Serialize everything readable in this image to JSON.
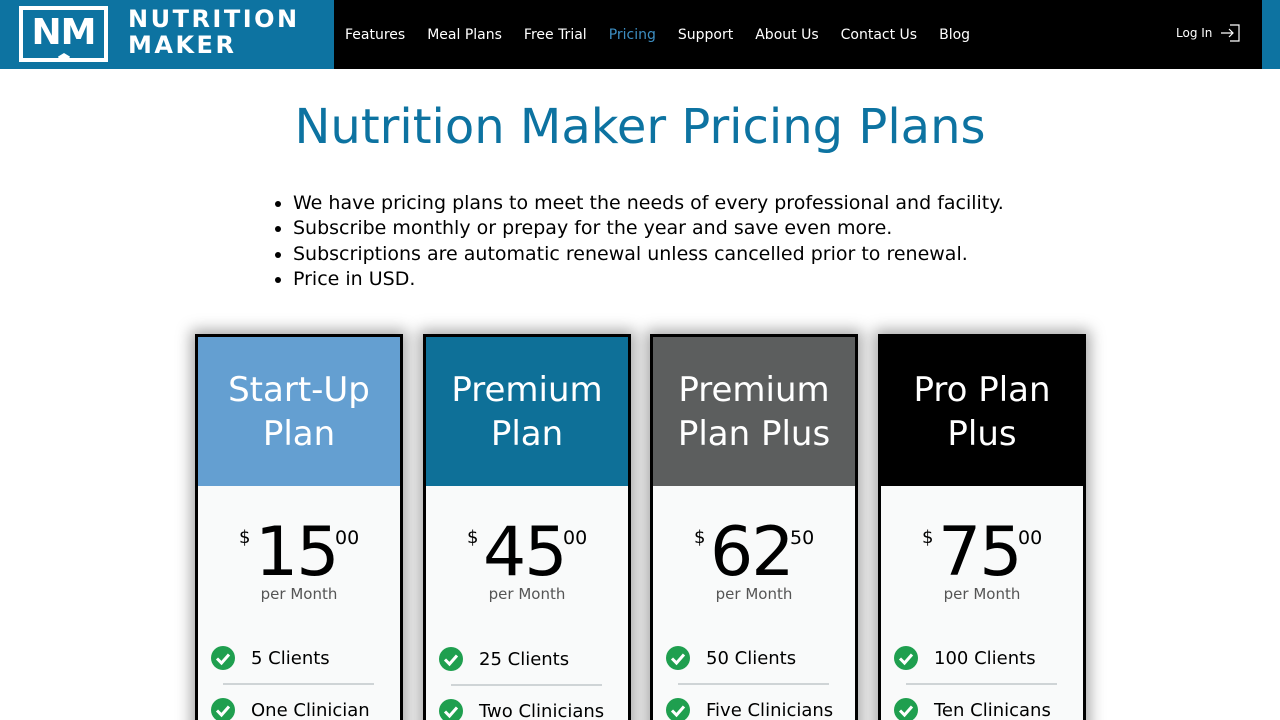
{
  "brand": {
    "mark": "NM",
    "name_line1": "NUTRITION",
    "name_line2": "MAKER"
  },
  "nav": {
    "items": [
      {
        "label": "Features"
      },
      {
        "label": "Meal Plans"
      },
      {
        "label": "Free Trial"
      },
      {
        "label": "Pricing",
        "active": true
      },
      {
        "label": "Support"
      },
      {
        "label": "About Us"
      },
      {
        "label": "Contact Us"
      },
      {
        "label": "Blog"
      }
    ],
    "login_label": "Log In"
  },
  "page": {
    "title": "Nutrition Maker Pricing Plans",
    "bullets": [
      "We have pricing plans to meet the needs of every professional and facility.",
      "Subscribe monthly or prepay for the year and save even more.",
      "Subscriptions are automatic renewal unless cancelled prior to renewal.",
      "Price in USD."
    ]
  },
  "plans": [
    {
      "name_line1": "Start-Up",
      "name_line2": "Plan",
      "color": "#649fd1",
      "currency": "$",
      "amount": "15",
      "cents": "00",
      "period": "per Month",
      "features": [
        "5 Clients",
        "One Clinician"
      ]
    },
    {
      "name_line1": "Premium",
      "name_line2": "Plan",
      "color": "#0e7098",
      "currency": "$",
      "amount": "45",
      "cents": "00",
      "period": "per Month",
      "features": [
        "25 Clients",
        "Two Clinicians"
      ]
    },
    {
      "name_line1": "Premium",
      "name_line2": "Plan Plus",
      "color": "#5c5e5e",
      "currency": "$",
      "amount": "62",
      "cents": "50",
      "period": "per Month",
      "features": [
        "50 Clients",
        "Five Clinicians"
      ]
    },
    {
      "name_line1": "Pro Plan",
      "name_line2": "Plus",
      "color": "#000000",
      "currency": "$",
      "amount": "75",
      "cents": "00",
      "period": "per Month",
      "features": [
        "100 Clients",
        "Ten Clinicans"
      ]
    }
  ],
  "colors": {
    "brand_blue": "#0d73a1",
    "nav_active": "#3d8ec2",
    "check_green": "#1f9f4f"
  }
}
